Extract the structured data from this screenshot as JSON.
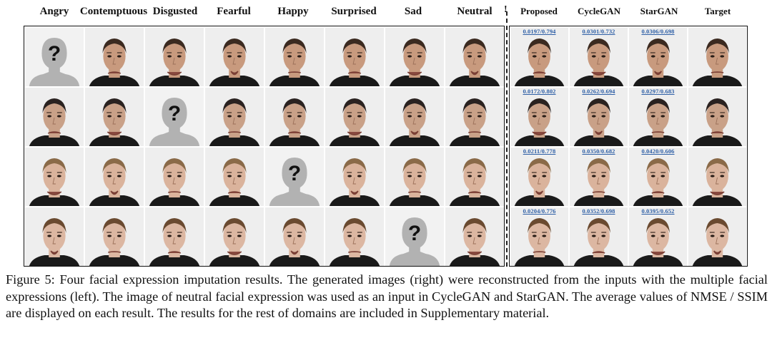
{
  "left_headers": [
    "Angry",
    "Contemptuous",
    "Disgusted",
    "Fearful",
    "Happy",
    "Surprised",
    "Sad",
    "Neutral"
  ],
  "right_headers": [
    "Proposed",
    "CycleGAN",
    "StarGAN",
    "Target"
  ],
  "separator_mark": "!",
  "placeholder_glyph": "?",
  "rows": [
    {
      "missing_index": 0,
      "metrics": [
        "0.0197/0.794",
        "0.0301/0.732",
        "0.0306/0.698"
      ],
      "skin": "#c89a7e",
      "hair": "#3b2a20"
    },
    {
      "missing_index": 2,
      "metrics": [
        "0.0172/0.802",
        "0.0262/0.694",
        "0.0297/0.683"
      ],
      "skin": "#c9a188",
      "hair": "#2a2220"
    },
    {
      "missing_index": 4,
      "metrics": [
        "0.0211/0.778",
        "0.0350/0.682",
        "0.0420/0.606"
      ],
      "skin": "#dab39c",
      "hair": "#8a6a48"
    },
    {
      "missing_index": 6,
      "metrics": [
        "0.0204/0.776",
        "0.0352/0.698",
        "0.0395/0.652"
      ],
      "skin": "#dcb7a2",
      "hair": "#6a4a30"
    }
  ],
  "caption": "Figure 5: Four facial expression imputation results. The generated images (right) were reconstructed from the inputs with the multiple facial expressions (left). The image of neutral facial expression was used as an input in CycleGAN and StarGAN. The average values of NMSE / SSIM are displayed on each result. The results for the rest of domains are included in Supplementary material.",
  "colors": {
    "metric_text": "#2e5fa6",
    "placeholder_silhouette": "#b2b2b2",
    "placeholder_mark": "#111111",
    "shirt": "#1a1a1a",
    "background": "#eeeeee"
  }
}
